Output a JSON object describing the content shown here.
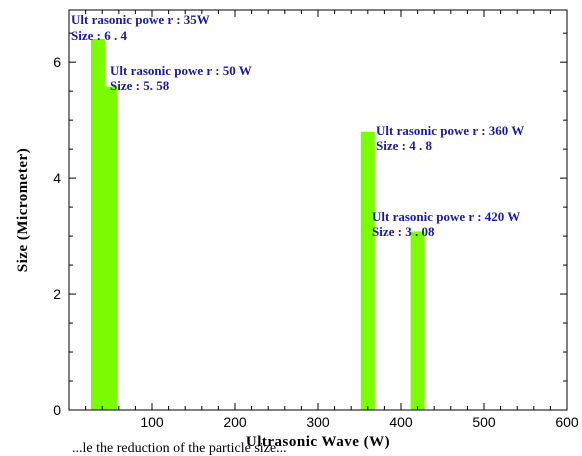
{
  "chart_data": {
    "type": "bar",
    "title": "",
    "xlabel": "Ultrasonic Wave (W)",
    "ylabel": "Size (Micrometer)",
    "xlim": [
      0,
      600
    ],
    "ylim": [
      0,
      6.9
    ],
    "xticks": [
      100,
      200,
      300,
      400,
      500,
      600
    ],
    "yticks": [
      0,
      2,
      4,
      6
    ],
    "grid": false,
    "bar_color": "#7cfc00",
    "annotation_color": "#1a1a9c",
    "bars": [
      {
        "x": 35,
        "value": 6.4,
        "annotation_power": "Ult rasonic powe r : 35W",
        "annotation_size": "Size : 6 . 4"
      },
      {
        "x": 50,
        "value": 5.58,
        "annotation_power": "Ult rasonic powe r : 50 W",
        "annotation_size": "Size : 5. 58"
      },
      {
        "x": 360,
        "value": 4.8,
        "annotation_power": "Ult rasonic powe r : 360 W",
        "annotation_size": "Size : 4 . 8"
      },
      {
        "x": 420,
        "value": 3.08,
        "annotation_power": "Ult rasonic powe r : 420 W",
        "annotation_size": "Size : 3 . 08"
      }
    ]
  },
  "caption_text": "...le the reduction of the particle size..."
}
